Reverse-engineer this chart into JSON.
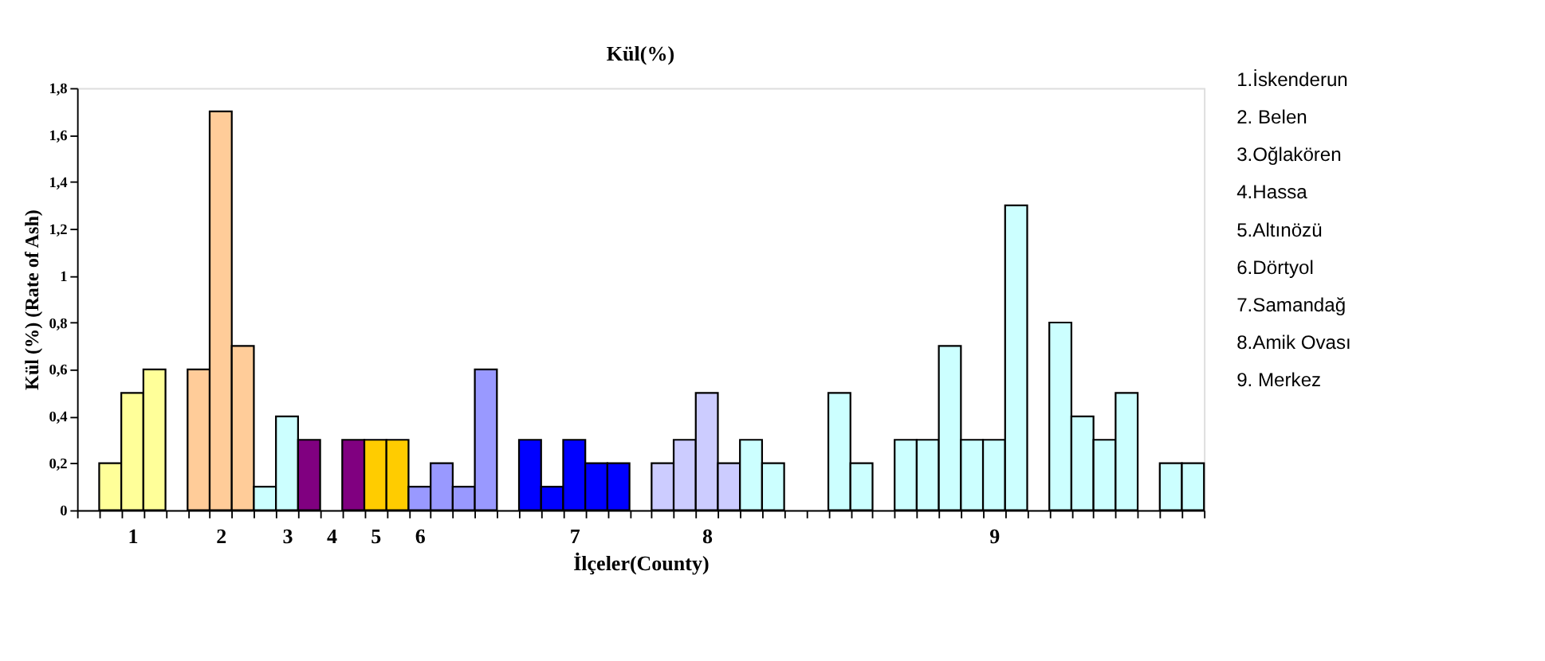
{
  "chart_data": {
    "type": "bar",
    "title": "Kül(%)",
    "xlabel": "İlçeler(County)",
    "ylabel": "Kül (%) (Rate of Ash)",
    "categories": [
      null,
      null,
      "1",
      null,
      null,
      null,
      "2",
      null,
      null,
      "3",
      null,
      "4",
      null,
      "5",
      null,
      "6",
      null,
      null,
      null,
      null,
      null,
      null,
      "7",
      null,
      null,
      null,
      null,
      null,
      "8",
      null,
      null,
      null,
      null,
      null,
      null,
      null,
      null,
      null,
      null,
      null,
      null,
      "9",
      null,
      null,
      null,
      null,
      null,
      null,
      null,
      null,
      null
    ],
    "values": [
      null,
      0.2,
      0.5,
      0.6,
      null,
      0.6,
      1.7,
      0.7,
      0.1,
      0.4,
      0.3,
      null,
      0.3,
      0.3,
      0.3,
      0.1,
      0.2,
      0.1,
      0.6,
      null,
      0.3,
      0.1,
      0.3,
      0.2,
      0.2,
      null,
      0.2,
      0.3,
      0.5,
      0.2,
      0.3,
      0.2,
      null,
      null,
      0.5,
      0.2,
      null,
      0.3,
      0.3,
      0.7,
      0.3,
      0.3,
      1.3,
      null,
      0.8,
      0.4,
      0.3,
      0.5,
      null,
      0.2,
      0.2
    ],
    "colors": [
      null,
      "#ffff99",
      "#ffff99",
      "#ffff99",
      null,
      "#ffcc99",
      "#ffcc99",
      "#ffcc99",
      "#ccffff",
      "#ccffff",
      "#800080",
      null,
      "#800080",
      "#ffcc00",
      "#ffcc00",
      "#9999ff",
      "#9999ff",
      "#9999ff",
      "#9999ff",
      null,
      "#0000ff",
      "#0000ff",
      "#0000ff",
      "#0000ff",
      "#0000ff",
      null,
      "#ccccff",
      "#ccccff",
      "#ccccff",
      "#ccccff",
      "#ccffff",
      "#ccffff",
      null,
      null,
      "#ccffff",
      "#ccffff",
      null,
      "#ccffff",
      "#ccffff",
      "#ccffff",
      "#ccffff",
      "#ccffff",
      "#ccffff",
      null,
      "#ccffff",
      "#ccffff",
      "#ccffff",
      "#ccffff",
      null,
      "#ccffff",
      "#ccffff"
    ],
    "ylim": [
      0,
      1.8
    ],
    "yticks": [
      0,
      {
        "value": 0.2,
        "label": "0,2"
      },
      {
        "value": 0.4,
        "label": "0,4"
      },
      {
        "value": 0.6,
        "label": "0,6"
      },
      {
        "value": 0.8,
        "label": "0,8"
      },
      1,
      {
        "value": 1.2,
        "label": "1,2"
      },
      {
        "value": 1.4,
        "label": "1,4"
      },
      {
        "value": 1.6,
        "label": "1,6"
      },
      {
        "value": 1.8,
        "label": "1,8"
      }
    ],
    "grid": false,
    "annotations": [
      "1.İskenderun",
      "2. Belen",
      "3.Oğlakören",
      "4.Hassa",
      "5.Altınözü",
      "6.Dörtyol",
      "7.Samandağ",
      "8.Amik Ovası",
      "9. Merkez"
    ]
  }
}
